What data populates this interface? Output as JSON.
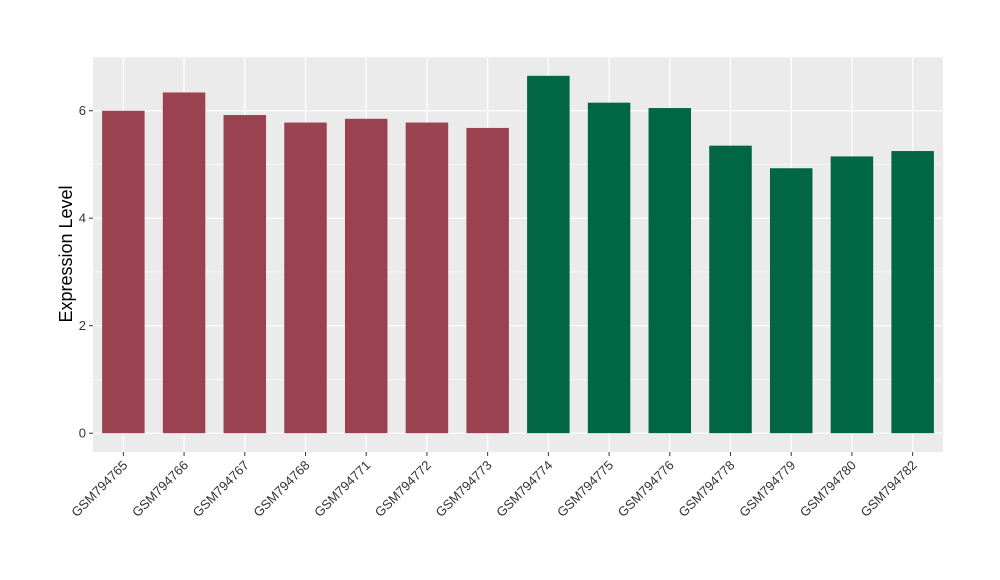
{
  "chart_data": {
    "type": "bar",
    "title": "",
    "xlabel": "",
    "ylabel": "Expression Level",
    "ylim": [
      -0.35,
      7.0
    ],
    "yticks": [
      0,
      2,
      4,
      6
    ],
    "grid": true,
    "legend": "none",
    "categories": [
      "GSM794765",
      "GSM794766",
      "GSM794767",
      "GSM794768",
      "GSM794771",
      "GSM794772",
      "GSM794773",
      "GSM794774",
      "GSM794775",
      "GSM794776",
      "GSM794778",
      "GSM794779",
      "GSM794780",
      "GSM794782"
    ],
    "values": [
      6.0,
      6.34,
      5.92,
      5.78,
      5.85,
      5.78,
      5.68,
      6.65,
      6.15,
      6.05,
      5.35,
      4.93,
      5.15,
      5.25
    ],
    "bar_colors": [
      "#9a4250",
      "#9a4250",
      "#9a4250",
      "#9a4250",
      "#9a4250",
      "#9a4250",
      "#9a4250",
      "#006644",
      "#006644",
      "#006644",
      "#006644",
      "#006644",
      "#006644",
      "#006644"
    ],
    "panel_background": "#ebebeb",
    "grid_color": "#ffffff"
  }
}
